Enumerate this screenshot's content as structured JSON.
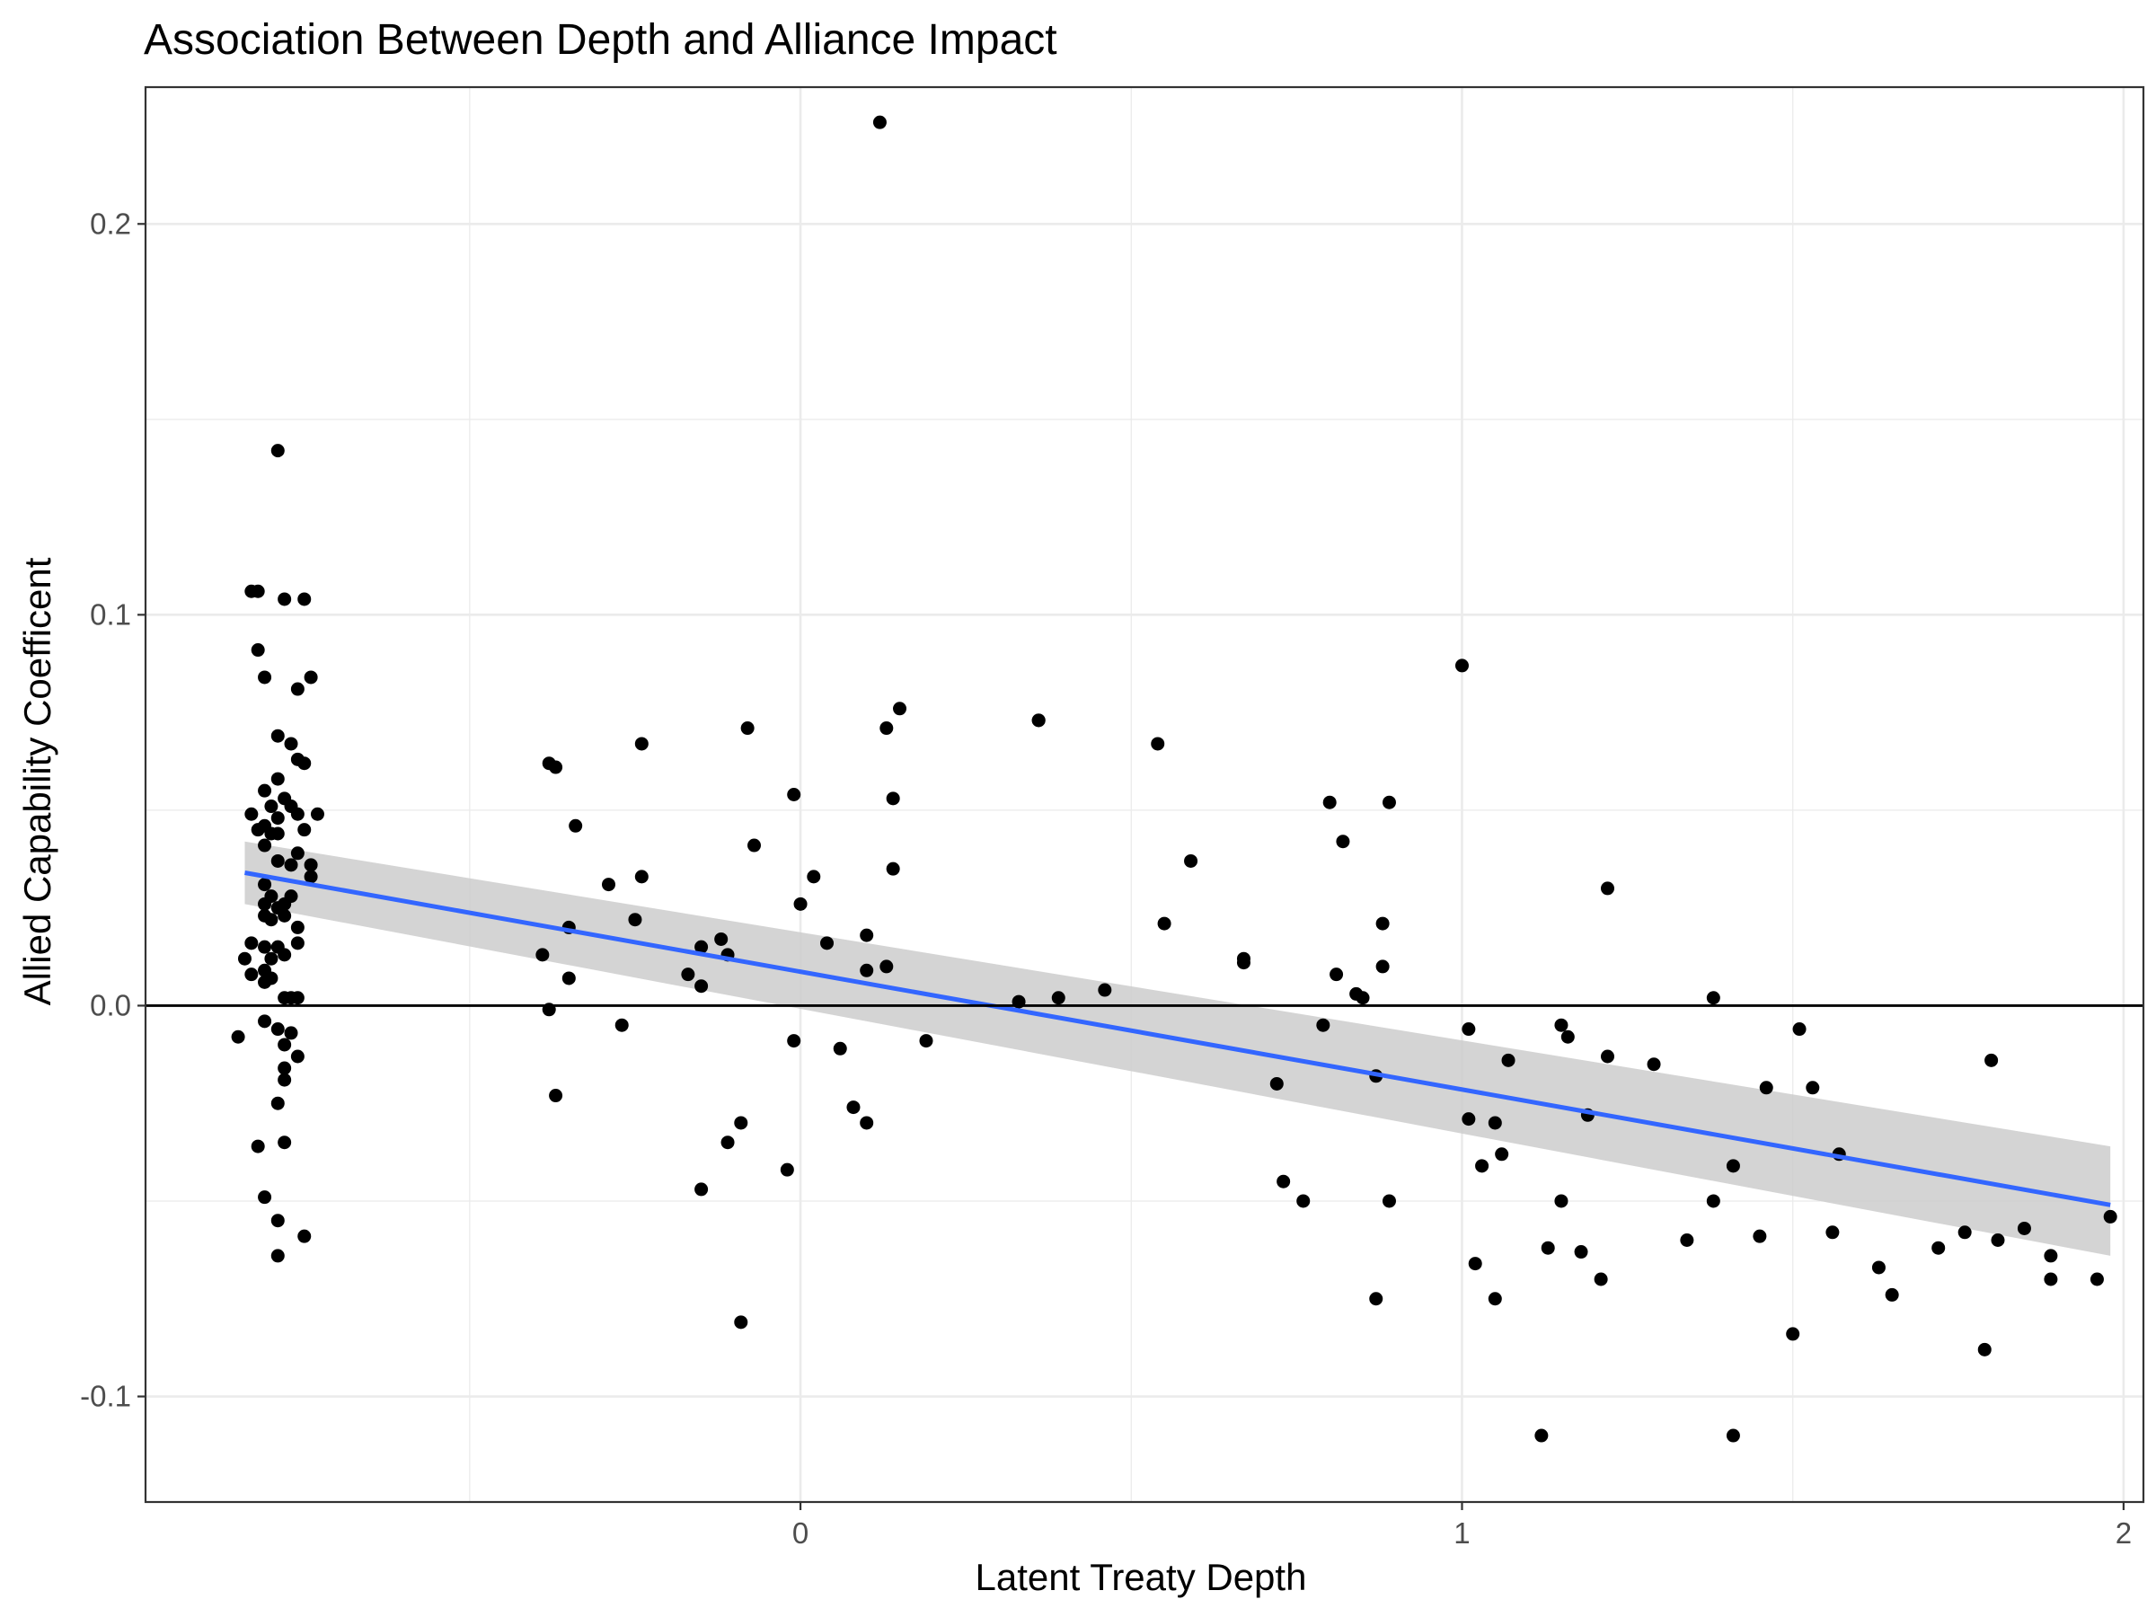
{
  "chart_data": {
    "type": "scatter",
    "title": "Association Between Depth and Alliance Impact",
    "xlabel": "Latent Treaty Depth",
    "ylabel": "Allied Capability Coefficent",
    "xlim": [
      -0.99,
      2.03
    ],
    "ylim": [
      -0.127,
      0.235
    ],
    "x_ticks": [
      0,
      1,
      2
    ],
    "x_tick_labels": [
      "0",
      "1",
      "2"
    ],
    "y_ticks": [
      -0.1,
      0.0,
      0.1,
      0.2
    ],
    "y_tick_labels": [
      "-0.1",
      "0.0",
      "0.1",
      "0.2"
    ],
    "grid": true,
    "reference_line": {
      "y": 0
    },
    "colors": {
      "points": "#000000",
      "fit_line": "#3366ff",
      "ribbon": "#cccccc",
      "grid": "#ebebeb"
    },
    "fit": {
      "method": "linear",
      "x": [
        -0.84,
        1.98
      ],
      "y": [
        0.034,
        -0.051
      ],
      "ci_upper": [
        0.042,
        -0.036
      ],
      "ci_lower": [
        0.026,
        -0.064
      ]
    },
    "points": [
      [
        -0.79,
        0.142
      ],
      [
        -0.83,
        0.106
      ],
      [
        -0.82,
        0.106
      ],
      [
        -0.78,
        0.104
      ],
      [
        -0.75,
        0.104
      ],
      [
        -0.82,
        0.091
      ],
      [
        -0.81,
        0.084
      ],
      [
        -0.74,
        0.084
      ],
      [
        -0.76,
        0.081
      ],
      [
        -0.79,
        0.069
      ],
      [
        -0.77,
        0.067
      ],
      [
        -0.76,
        0.063
      ],
      [
        -0.75,
        0.062
      ],
      [
        -0.79,
        0.058
      ],
      [
        -0.81,
        0.055
      ],
      [
        -0.78,
        0.053
      ],
      [
        -0.8,
        0.051
      ],
      [
        -0.77,
        0.051
      ],
      [
        -0.83,
        0.049
      ],
      [
        -0.79,
        0.048
      ],
      [
        -0.73,
        0.049
      ],
      [
        -0.76,
        0.049
      ],
      [
        -0.81,
        0.046
      ],
      [
        -0.82,
        0.045
      ],
      [
        -0.8,
        0.044
      ],
      [
        -0.75,
        0.045
      ],
      [
        -0.79,
        0.044
      ],
      [
        -0.81,
        0.041
      ],
      [
        -0.76,
        0.039
      ],
      [
        -0.74,
        0.036
      ],
      [
        -0.79,
        0.037
      ],
      [
        -0.77,
        0.036
      ],
      [
        -0.81,
        0.031
      ],
      [
        -0.74,
        0.033
      ],
      [
        -0.8,
        0.028
      ],
      [
        -0.77,
        0.028
      ],
      [
        -0.81,
        0.026
      ],
      [
        -0.79,
        0.025
      ],
      [
        -0.78,
        0.026
      ],
      [
        -0.81,
        0.023
      ],
      [
        -0.8,
        0.022
      ],
      [
        -0.78,
        0.023
      ],
      [
        -0.76,
        0.02
      ],
      [
        -0.81,
        0.015
      ],
      [
        -0.83,
        0.016
      ],
      [
        -0.79,
        0.015
      ],
      [
        -0.76,
        0.016
      ],
      [
        -0.8,
        0.012
      ],
      [
        -0.78,
        0.013
      ],
      [
        -0.84,
        0.012
      ],
      [
        -0.83,
        0.008
      ],
      [
        -0.81,
        0.009
      ],
      [
        -0.8,
        0.007
      ],
      [
        -0.81,
        0.006
      ],
      [
        -0.78,
        0.002
      ],
      [
        -0.77,
        0.002
      ],
      [
        -0.76,
        0.002
      ],
      [
        -0.81,
        -0.004
      ],
      [
        -0.79,
        -0.006
      ],
      [
        -0.77,
        -0.007
      ],
      [
        -0.85,
        -0.008
      ],
      [
        -0.78,
        -0.01
      ],
      [
        -0.76,
        -0.013
      ],
      [
        -0.78,
        -0.016
      ],
      [
        -0.78,
        -0.019
      ],
      [
        -0.79,
        -0.025
      ],
      [
        -0.78,
        -0.035
      ],
      [
        -0.82,
        -0.036
      ],
      [
        -0.81,
        -0.049
      ],
      [
        -0.79,
        -0.055
      ],
      [
        -0.75,
        -0.059
      ],
      [
        -0.79,
        -0.064
      ],
      [
        -0.38,
        0.062
      ],
      [
        -0.37,
        0.061
      ],
      [
        -0.34,
        0.046
      ],
      [
        -0.29,
        0.031
      ],
      [
        -0.24,
        0.067
      ],
      [
        -0.24,
        0.033
      ],
      [
        -0.25,
        0.022
      ],
      [
        -0.35,
        0.02
      ],
      [
        -0.39,
        0.013
      ],
      [
        -0.35,
        0.007
      ],
      [
        -0.38,
        -0.001
      ],
      [
        -0.27,
        -0.005
      ],
      [
        -0.37,
        -0.023
      ],
      [
        -0.17,
        0.008
      ],
      [
        -0.15,
        0.015
      ],
      [
        -0.15,
        0.005
      ],
      [
        -0.12,
        0.017
      ],
      [
        -0.11,
        0.013
      ],
      [
        -0.08,
        0.071
      ],
      [
        -0.07,
        0.041
      ],
      [
        -0.01,
        0.054
      ],
      [
        0.02,
        0.033
      ],
      [
        0.0,
        0.026
      ],
      [
        0.04,
        0.016
      ],
      [
        0.1,
        0.018
      ],
      [
        0.1,
        0.009
      ],
      [
        0.13,
        0.01
      ],
      [
        -0.01,
        -0.009
      ],
      [
        0.06,
        -0.011
      ],
      [
        0.08,
        -0.026
      ],
      [
        0.1,
        -0.03
      ],
      [
        -0.09,
        -0.03
      ],
      [
        -0.11,
        -0.035
      ],
      [
        -0.02,
        -0.042
      ],
      [
        -0.15,
        -0.047
      ],
      [
        -0.09,
        -0.081
      ],
      [
        0.12,
        0.226
      ],
      [
        0.13,
        0.071
      ],
      [
        0.15,
        0.076
      ],
      [
        0.14,
        0.053
      ],
      [
        0.14,
        0.035
      ],
      [
        0.19,
        -0.009
      ],
      [
        0.33,
        0.001
      ],
      [
        0.36,
        0.073
      ],
      [
        0.36,
        0.073
      ],
      [
        0.39,
        0.002
      ],
      [
        0.46,
        0.004
      ],
      [
        0.54,
        0.067
      ],
      [
        0.55,
        0.021
      ],
      [
        0.59,
        0.037
      ],
      [
        0.67,
        0.012
      ],
      [
        0.67,
        0.011
      ],
      [
        0.72,
        -0.02
      ],
      [
        0.73,
        -0.045
      ],
      [
        0.76,
        -0.05
      ],
      [
        0.8,
        0.052
      ],
      [
        0.81,
        0.008
      ],
      [
        0.82,
        0.042
      ],
      [
        0.84,
        0.003
      ],
      [
        0.85,
        0.002
      ],
      [
        0.79,
        -0.005
      ],
      [
        0.87,
        -0.018
      ],
      [
        0.87,
        -0.075
      ],
      [
        0.88,
        0.021
      ],
      [
        0.88,
        0.01
      ],
      [
        0.89,
        0.052
      ],
      [
        0.89,
        -0.05
      ],
      [
        1.0,
        0.087
      ],
      [
        1.01,
        -0.006
      ],
      [
        1.01,
        -0.029
      ],
      [
        1.03,
        -0.041
      ],
      [
        1.05,
        -0.03
      ],
      [
        1.07,
        -0.014
      ],
      [
        1.06,
        -0.038
      ],
      [
        1.02,
        -0.066
      ],
      [
        1.05,
        -0.075
      ],
      [
        1.13,
        -0.062
      ],
      [
        1.12,
        -0.11
      ],
      [
        1.15,
        -0.005
      ],
      [
        1.16,
        -0.008
      ],
      [
        1.19,
        -0.028
      ],
      [
        1.15,
        -0.05
      ],
      [
        1.18,
        -0.063
      ],
      [
        1.21,
        -0.07
      ],
      [
        1.22,
        0.03
      ],
      [
        1.22,
        -0.013
      ],
      [
        1.29,
        -0.015
      ],
      [
        1.34,
        -0.06
      ],
      [
        1.38,
        0.002
      ],
      [
        1.38,
        -0.05
      ],
      [
        1.41,
        -0.041
      ],
      [
        1.45,
        -0.059
      ],
      [
        1.46,
        -0.021
      ],
      [
        1.5,
        -0.084
      ],
      [
        1.51,
        -0.006
      ],
      [
        1.53,
        -0.021
      ],
      [
        1.57,
        -0.038
      ],
      [
        1.56,
        -0.058
      ],
      [
        1.41,
        -0.11
      ],
      [
        1.63,
        -0.067
      ],
      [
        1.65,
        -0.074
      ],
      [
        1.72,
        -0.062
      ],
      [
        1.76,
        -0.058
      ],
      [
        1.79,
        -0.088
      ],
      [
        1.8,
        -0.014
      ],
      [
        1.81,
        -0.06
      ],
      [
        1.85,
        -0.057
      ],
      [
        1.89,
        -0.064
      ],
      [
        1.89,
        -0.07
      ],
      [
        1.96,
        -0.07
      ],
      [
        1.98,
        -0.054
      ]
    ]
  }
}
